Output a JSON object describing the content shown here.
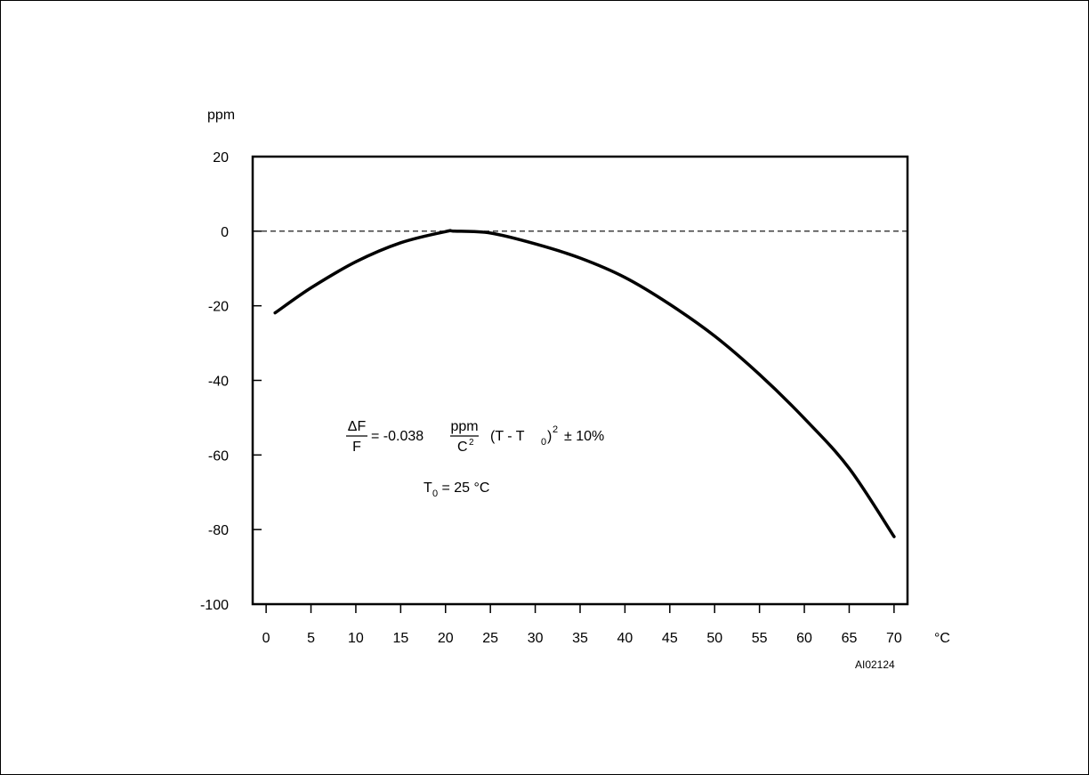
{
  "chart_data": {
    "type": "line",
    "title": "",
    "xlabel": "°C",
    "ylabel": "ppm",
    "xlim": [
      -1.5,
      71.5
    ],
    "ylim": [
      -100,
      20
    ],
    "xticks": [
      0,
      5,
      10,
      15,
      20,
      25,
      30,
      35,
      40,
      45,
      50,
      55,
      60,
      65,
      70
    ],
    "yticks": [
      20,
      0,
      -20,
      -40,
      -60,
      -80,
      -100
    ],
    "grid": false,
    "reference_line": {
      "y": 0,
      "style": "dashed"
    },
    "series": [
      {
        "x": [
          1,
          5,
          10,
          15,
          20,
          21,
          25,
          30,
          35,
          40,
          45,
          50,
          55,
          60,
          65,
          70
        ],
        "y": [
          -21.9,
          -15.2,
          -8.2,
          -3.1,
          -0.1,
          0,
          -0.5,
          -3.4,
          -7.2,
          -12.4,
          -19.6,
          -28.1,
          -38.4,
          -50.2,
          -63.6,
          -81.9
        ]
      }
    ],
    "annotations": {
      "formula_num": "ΔF",
      "formula_den": "F",
      "formula_eq": "= -0.038",
      "unit_num": "ppm",
      "unit_den": "C",
      "unit_den_exp": "2",
      "term_open": "(T - T",
      "term_sub": "0",
      "term_close": ")",
      "term_exp": "2",
      "tolerance": "± 10%",
      "t0_main": "T",
      "t0_sub": "0",
      "t0_value": " = 25 °C"
    },
    "figure_id": "AI02124"
  }
}
